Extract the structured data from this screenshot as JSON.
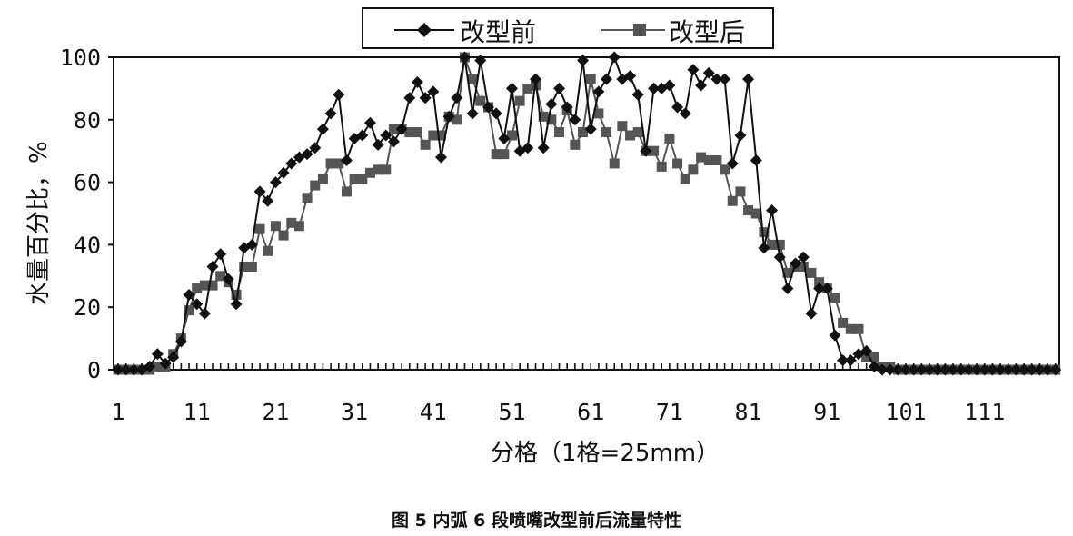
{
  "chart_data": {
    "type": "line",
    "xlabel": "分格（1格=25mm）",
    "ylabel": "水量百分比，%",
    "caption": "图 5   内弧 6 段喷嘴改型前后流量特性",
    "xlim": [
      1,
      120
    ],
    "ylim": [
      0,
      100
    ],
    "yticks": [
      0,
      20,
      40,
      60,
      80,
      100
    ],
    "xticks": [
      1,
      11,
      21,
      31,
      41,
      51,
      61,
      71,
      81,
      91,
      101,
      111
    ],
    "grid": false,
    "legend_position": "top-center",
    "series": [
      {
        "name": "改型前",
        "marker": "diamond",
        "color": "#111111",
        "x": [
          1,
          2,
          3,
          4,
          5,
          6,
          7,
          8,
          9,
          10,
          11,
          12,
          13,
          14,
          15,
          16,
          17,
          18,
          19,
          20,
          21,
          22,
          23,
          24,
          25,
          26,
          27,
          28,
          29,
          30,
          31,
          32,
          33,
          34,
          35,
          36,
          37,
          38,
          39,
          40,
          41,
          42,
          43,
          44,
          45,
          46,
          47,
          48,
          49,
          50,
          51,
          52,
          53,
          54,
          55,
          56,
          57,
          58,
          59,
          60,
          61,
          62,
          63,
          64,
          65,
          66,
          67,
          68,
          69,
          70,
          71,
          72,
          73,
          74,
          75,
          76,
          77,
          78,
          79,
          80,
          81,
          82,
          83,
          84,
          85,
          86,
          87,
          88,
          89,
          90,
          91,
          92,
          93,
          94,
          95,
          96,
          97,
          98,
          99,
          100,
          101,
          102,
          103,
          104,
          105,
          106,
          107,
          108,
          109,
          110,
          111,
          112,
          113,
          114,
          115,
          116,
          117,
          118,
          119,
          120
        ],
        "y": [
          0,
          0,
          0,
          0,
          1,
          5,
          2,
          4,
          9,
          24,
          21,
          18,
          33,
          37,
          29,
          21,
          39,
          40,
          57,
          54,
          60,
          63,
          66,
          68,
          69,
          71,
          77,
          82,
          88,
          67,
          74,
          75,
          79,
          72,
          75,
          73,
          77,
          87,
          92,
          87,
          89,
          68,
          81,
          87,
          100,
          82,
          99,
          84,
          82,
          74,
          90,
          70,
          71,
          93,
          71,
          85,
          90,
          84,
          80,
          99,
          77,
          89,
          93,
          100,
          93,
          94,
          88,
          70,
          90,
          90,
          91,
          84,
          82,
          96,
          91,
          95,
          93,
          93,
          66,
          75,
          93,
          67,
          39,
          51,
          36,
          26,
          34,
          36,
          18,
          26,
          26,
          11,
          3,
          3,
          5,
          6,
          1,
          0,
          0,
          0,
          0,
          0,
          0,
          0,
          0,
          0,
          0,
          0,
          0,
          0,
          0,
          0,
          0,
          0,
          0,
          0,
          0,
          0,
          0,
          0
        ]
      },
      {
        "name": "改型后",
        "marker": "square",
        "color": "#555555",
        "x": [
          1,
          2,
          3,
          4,
          5,
          6,
          7,
          8,
          9,
          10,
          11,
          12,
          13,
          14,
          15,
          16,
          17,
          18,
          19,
          20,
          21,
          22,
          23,
          24,
          25,
          26,
          27,
          28,
          29,
          30,
          31,
          32,
          33,
          34,
          35,
          36,
          37,
          38,
          39,
          40,
          41,
          42,
          43,
          44,
          45,
          46,
          47,
          48,
          49,
          50,
          51,
          52,
          53,
          54,
          55,
          56,
          57,
          58,
          59,
          60,
          61,
          62,
          63,
          64,
          65,
          66,
          67,
          68,
          69,
          70,
          71,
          72,
          73,
          74,
          75,
          76,
          77,
          78,
          79,
          80,
          81,
          82,
          83,
          84,
          85,
          86,
          87,
          88,
          89,
          90,
          91,
          92,
          93,
          94,
          95,
          96,
          97,
          98,
          99,
          100,
          101,
          102,
          103,
          104,
          105,
          106,
          107,
          108,
          109,
          110,
          111,
          112,
          113,
          114,
          115,
          116,
          117,
          118,
          119,
          120
        ],
        "y": [
          0,
          0,
          0,
          0,
          0,
          1,
          1,
          5,
          10,
          19,
          26,
          27,
          27,
          30,
          28,
          24,
          33,
          33,
          45,
          38,
          46,
          43,
          47,
          46,
          55,
          59,
          61,
          66,
          66,
          57,
          61,
          61,
          63,
          64,
          64,
          77,
          77,
          76,
          76,
          72,
          75,
          75,
          81,
          80,
          100,
          93,
          86,
          84,
          69,
          69,
          75,
          86,
          90,
          91,
          81,
          80,
          76,
          83,
          72,
          76,
          93,
          82,
          76,
          66,
          78,
          75,
          76,
          70,
          70,
          65,
          74,
          66,
          61,
          64,
          68,
          67,
          67,
          64,
          54,
          57,
          51,
          50,
          44,
          40,
          40,
          31,
          33,
          33,
          31,
          28,
          26,
          23,
          15,
          13,
          13,
          4,
          4,
          1,
          1,
          0,
          0,
          0,
          0,
          0,
          0,
          0,
          0,
          0,
          0,
          0,
          0,
          0,
          0,
          0,
          0,
          0,
          0,
          0,
          0,
          0
        ]
      }
    ]
  }
}
